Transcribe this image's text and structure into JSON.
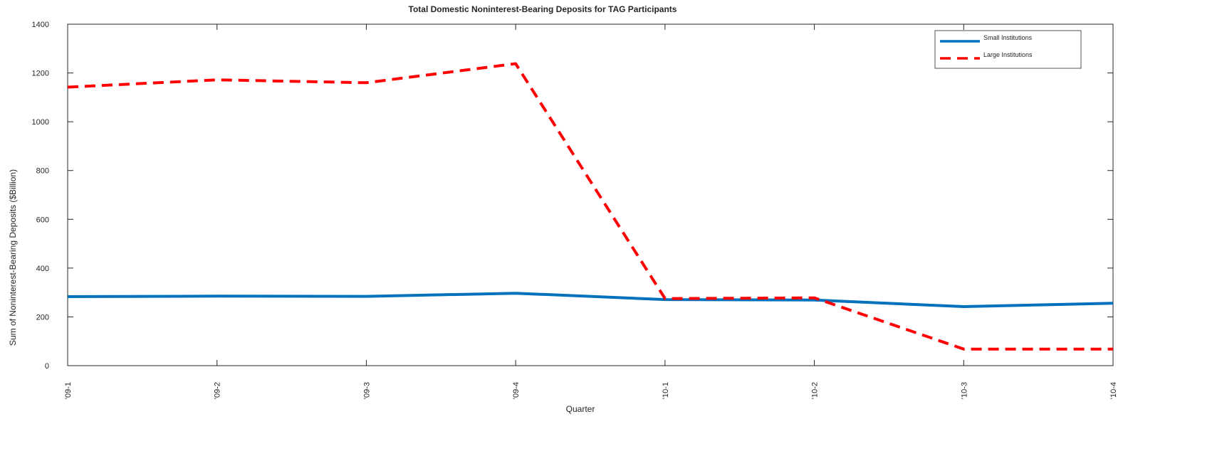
{
  "chart_data": {
    "type": "line",
    "title": "Total Domestic Noninterest-Bearing Deposits for TAG Participants",
    "xlabel": "Quarter",
    "ylabel": "Sum of Noninterest-Bearing Deposits ($Billion)",
    "categories": [
      "'09-1",
      "'09-2",
      "'09-3",
      "'09-4",
      "'10-1",
      "'10-2",
      "'10-3",
      "'10-4"
    ],
    "ylim": [
      0,
      1400
    ],
    "yticks": [
      0,
      200,
      400,
      600,
      800,
      1000,
      1200,
      1400
    ],
    "grid": false,
    "legend_position": "top-right",
    "series": [
      {
        "name": "Small Institutions",
        "color": "#0072bd",
        "style": "solid",
        "values": [
          283,
          285,
          284,
          297,
          271,
          269,
          242,
          256
        ]
      },
      {
        "name": "Large Institutions",
        "color": "#ff0000",
        "style": "dashed",
        "values": [
          1142,
          1172,
          1160,
          1238,
          275,
          278,
          68,
          68
        ]
      }
    ]
  }
}
